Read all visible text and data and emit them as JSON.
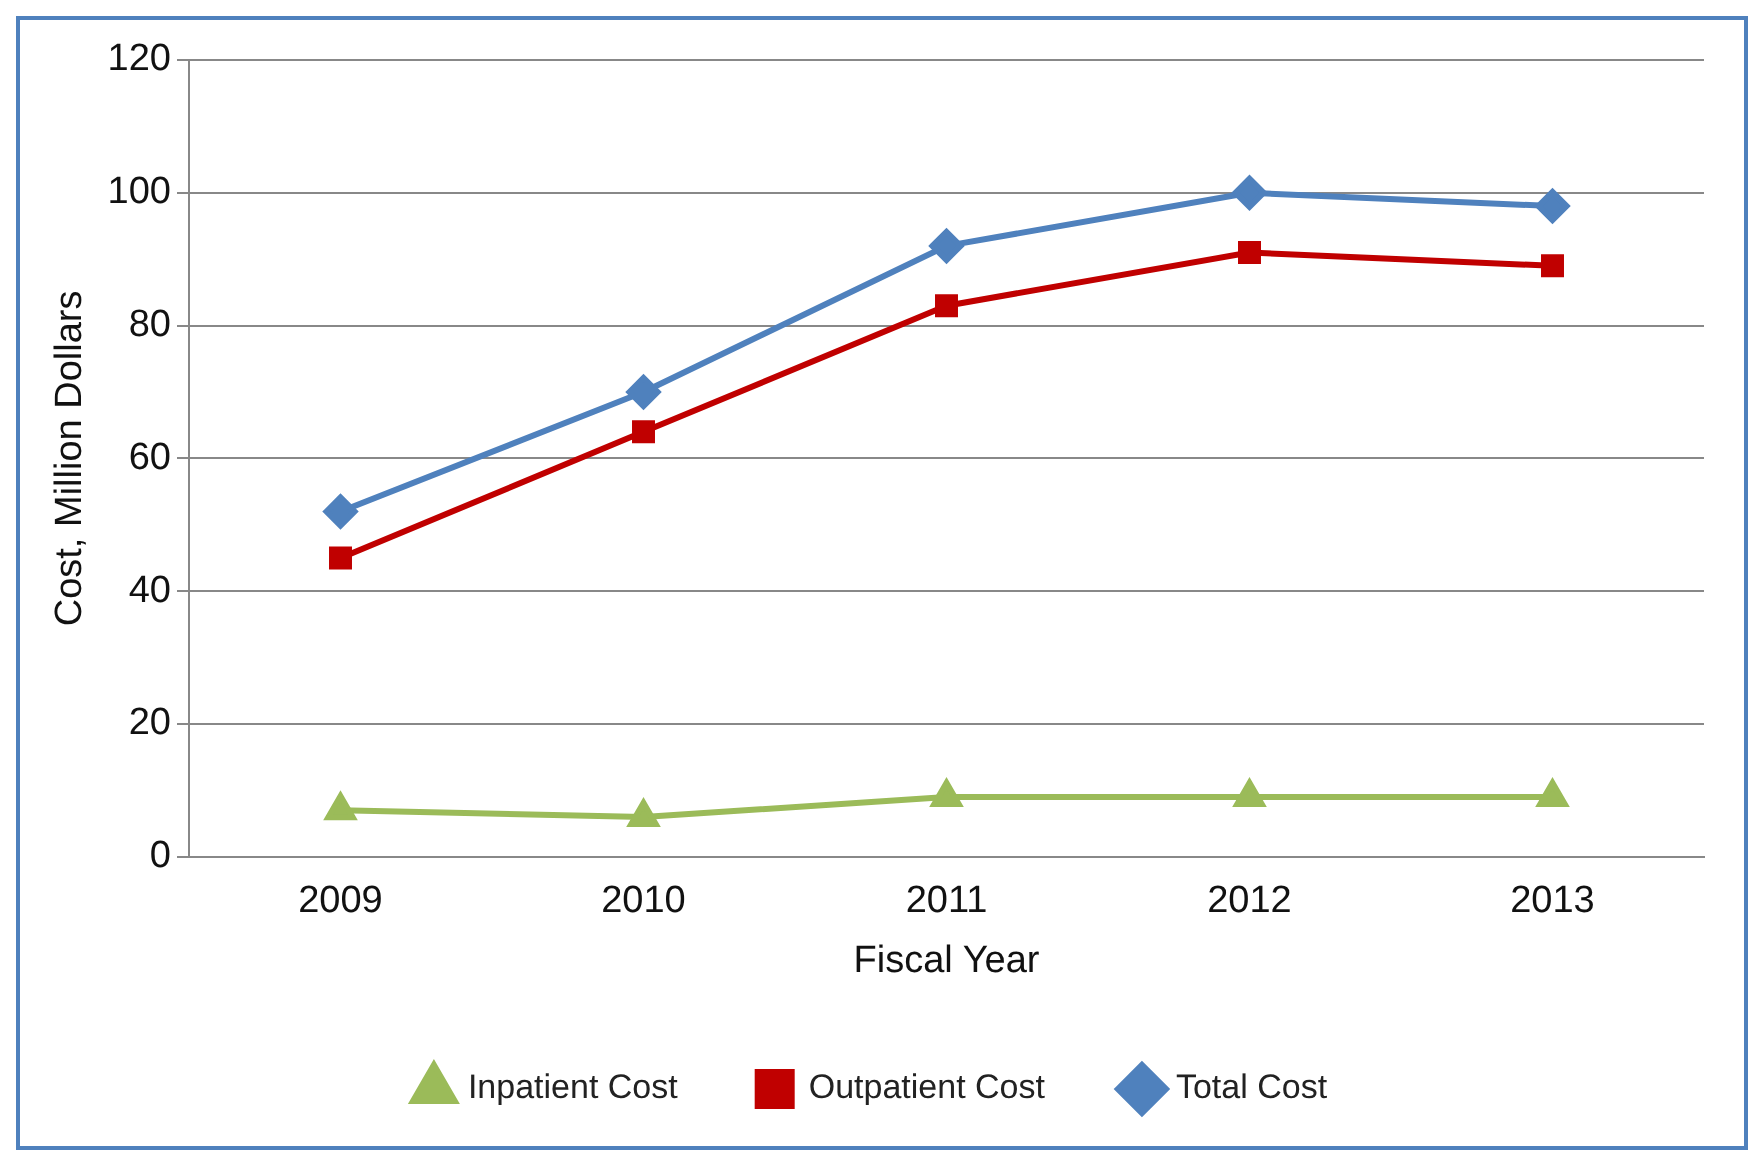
{
  "chart_data": {
    "type": "line",
    "xlabel": "Fiscal Year",
    "ylabel": "Cost, Million Dollars",
    "categories": [
      "2009",
      "2010",
      "2011",
      "2012",
      "2013"
    ],
    "series": [
      {
        "name": "Inpatient Cost",
        "color": "#9bbb59",
        "marker": "triangle",
        "values": [
          7,
          6,
          9,
          9,
          9
        ]
      },
      {
        "name": "Outpatient Cost",
        "color": "#c00000",
        "marker": "square",
        "values": [
          45,
          64,
          83,
          91,
          89
        ]
      },
      {
        "name": "Total Cost",
        "color": "#4f81bd",
        "marker": "diamond",
        "values": [
          52,
          70,
          92,
          100,
          98
        ]
      }
    ],
    "ylim": [
      0,
      120
    ],
    "yticks": [
      0,
      20,
      40,
      60,
      80,
      100,
      120
    ],
    "grid": "y",
    "legend": "bottom",
    "line_style": "solid"
  }
}
